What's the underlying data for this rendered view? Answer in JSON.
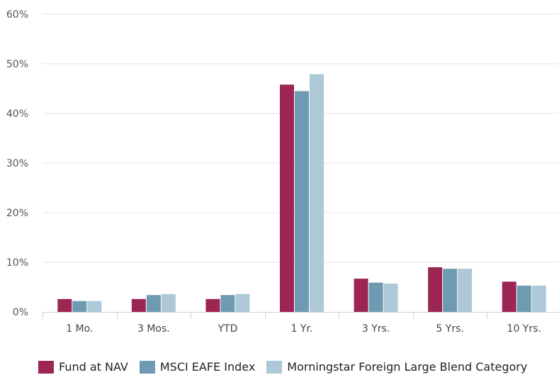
{
  "chart_data": {
    "type": "bar",
    "categories": [
      "1 Mo.",
      "3 Mos.",
      "YTD",
      "1 Yr.",
      "3 Yrs.",
      "5 Yrs.",
      "10 Yrs."
    ],
    "series": [
      {
        "name": "Fund at NAV",
        "color": "#9c2553",
        "values": [
          2.6,
          2.6,
          2.6,
          45.8,
          6.7,
          9.0,
          6.1
        ]
      },
      {
        "name": "MSCI EAFE Index",
        "color": "#6e9ab2",
        "values": [
          2.2,
          3.4,
          3.4,
          44.5,
          5.9,
          8.7,
          5.3
        ]
      },
      {
        "name": "Morningstar Foreign Large Blend Category",
        "color": "#adc8d6",
        "values": [
          2.2,
          3.6,
          3.6,
          47.9,
          5.7,
          8.7,
          5.3
        ]
      }
    ],
    "y_ticks": [
      "0%",
      "10%",
      "20%",
      "30%",
      "40%",
      "50%",
      "60%"
    ],
    "ylim": [
      0,
      60
    ],
    "grid": true,
    "legend_position": "bottom-left"
  }
}
